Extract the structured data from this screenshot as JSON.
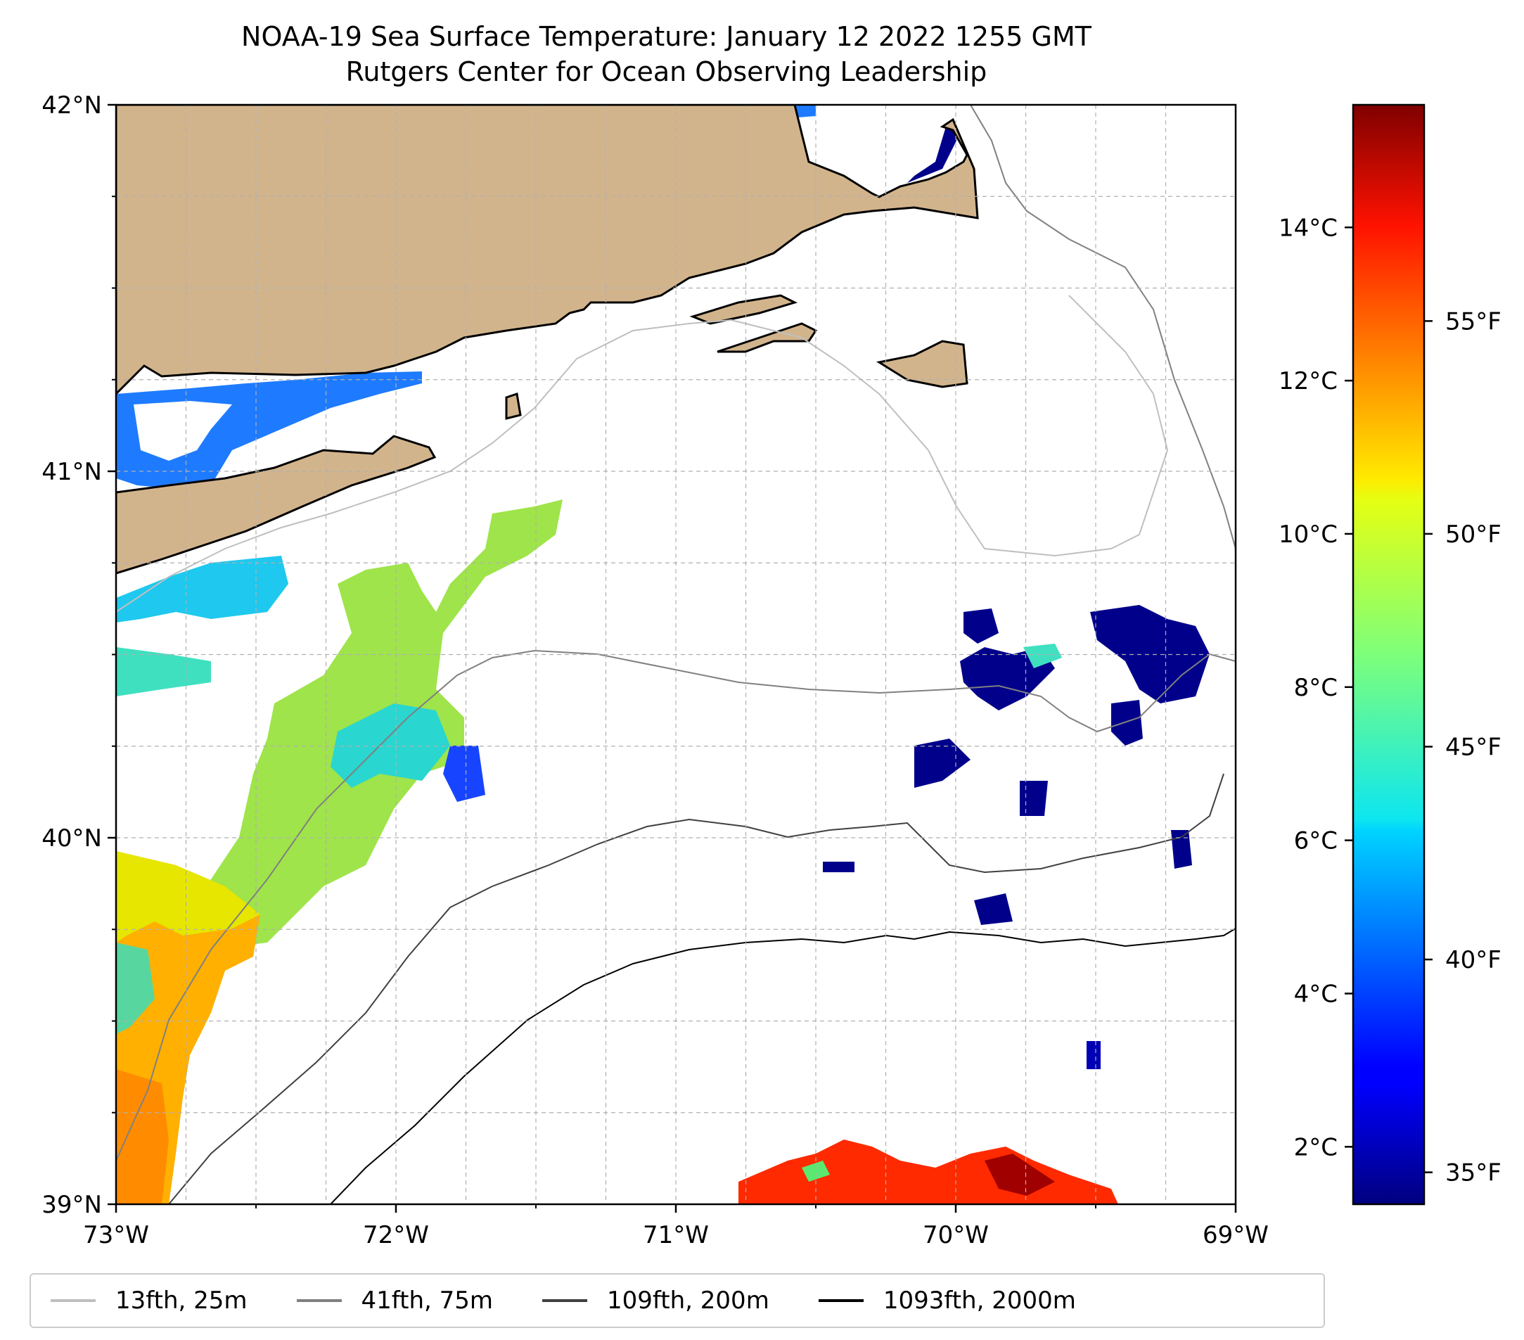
{
  "title": {
    "line1": "NOAA-19 Sea Surface Temperature: January 12 2022 1255 GMT",
    "line2": "Rutgers Center for Ocean Observing Leadership"
  },
  "map": {
    "extent": {
      "lon_min": -73,
      "lon_max": -69,
      "lat_min": 39,
      "lat_max": 42
    },
    "x_tick_labels": [
      "73°W",
      "72°W",
      "71°W",
      "70°W",
      "69°W"
    ],
    "y_tick_labels": [
      "39°N",
      "40°N",
      "41°N",
      "42°N"
    ],
    "gridlines": true,
    "land_color": "#d2b48c",
    "coastline_color": "#000000",
    "ocean_color": "#ffffff"
  },
  "colorbar": {
    "colormap": "jet",
    "celsius_ticks": [
      {
        "value": 2,
        "label": "2°C"
      },
      {
        "value": 4,
        "label": "4°C"
      },
      {
        "value": 6,
        "label": "6°C"
      },
      {
        "value": 8,
        "label": "8°C"
      },
      {
        "value": 10,
        "label": "10°C"
      },
      {
        "value": 12,
        "label": "12°C"
      },
      {
        "value": 14,
        "label": "14°C"
      }
    ],
    "fahrenheit_ticks": [
      {
        "value": 35,
        "label": "35°F"
      },
      {
        "value": 40,
        "label": "40°F"
      },
      {
        "value": 45,
        "label": "45°F"
      },
      {
        "value": 50,
        "label": "50°F"
      },
      {
        "value": 55,
        "label": "55°F"
      }
    ],
    "range_celsius": [
      1.25,
      15.6
    ]
  },
  "legend": {
    "items": [
      {
        "label": "13fth, 25m",
        "color": "#bfbfbf"
      },
      {
        "label": "41fth, 75m",
        "color": "#808080"
      },
      {
        "label": "109fth, 200m",
        "color": "#404040"
      },
      {
        "label": "1093fth, 2000m",
        "color": "#000000"
      }
    ]
  }
}
